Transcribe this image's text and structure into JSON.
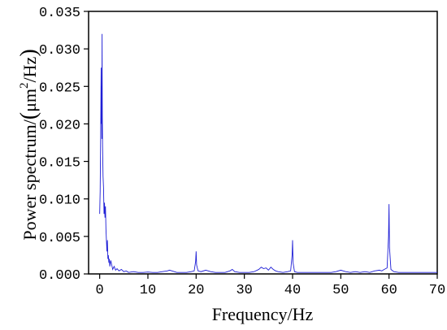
{
  "chart_data": {
    "type": "line",
    "title": "",
    "xlabel": "Frequency/Hz",
    "ylabel": {
      "prefix": "Power spectrum/",
      "open": "(",
      "unit_base": "μm",
      "unit_exp": "2",
      "unit_tail": "/Hz",
      "close": ")"
    },
    "xlim": [
      -2.3,
      70
    ],
    "ylim": [
      0,
      0.035
    ],
    "xticks": [
      0,
      10,
      20,
      30,
      40,
      50,
      60,
      70
    ],
    "yticks": [
      0.0,
      0.005,
      0.01,
      0.015,
      0.02,
      0.025,
      0.03,
      0.035
    ],
    "xtick_labels": [
      "0",
      "10",
      "20",
      "30",
      "40",
      "50",
      "60",
      "70"
    ],
    "ytick_labels": [
      "0.000",
      "0.005",
      "0.010",
      "0.015",
      "0.020",
      "0.025",
      "0.030",
      "0.035"
    ],
    "grid": false,
    "legend": "none",
    "series": [
      {
        "color": "#1f1fd6",
        "points": [
          [
            0.0,
            0.008
          ],
          [
            0.1,
            0.011
          ],
          [
            0.2,
            0.018
          ],
          [
            0.3,
            0.0275
          ],
          [
            0.35,
            0.02
          ],
          [
            0.4,
            0.025
          ],
          [
            0.45,
            0.018
          ],
          [
            0.5,
            0.032
          ],
          [
            0.55,
            0.021
          ],
          [
            0.6,
            0.017
          ],
          [
            0.7,
            0.013
          ],
          [
            0.8,
            0.0115
          ],
          [
            0.9,
            0.008
          ],
          [
            1.0,
            0.0095
          ],
          [
            1.1,
            0.0075
          ],
          [
            1.2,
            0.009
          ],
          [
            1.3,
            0.006
          ],
          [
            1.4,
            0.0045
          ],
          [
            1.5,
            0.003
          ],
          [
            1.6,
            0.0045
          ],
          [
            1.7,
            0.002
          ],
          [
            1.8,
            0.0025
          ],
          [
            1.9,
            0.0015
          ],
          [
            2.0,
            0.002
          ],
          [
            2.1,
            0.001
          ],
          [
            2.3,
            0.0018
          ],
          [
            2.5,
            0.0012
          ],
          [
            2.7,
            0.0006
          ],
          [
            3.0,
            0.001
          ],
          [
            3.3,
            0.0005
          ],
          [
            3.6,
            0.0007
          ],
          [
            4.0,
            0.0004
          ],
          [
            4.5,
            0.0006
          ],
          [
            5.0,
            0.0003
          ],
          [
            5.5,
            0.0004
          ],
          [
            6.0,
            0.0002
          ],
          [
            7.0,
            0.0003
          ],
          [
            8.0,
            0.0002
          ],
          [
            9.0,
            0.0002
          ],
          [
            10.0,
            0.00025
          ],
          [
            11.0,
            0.0002
          ],
          [
            12.0,
            0.0002
          ],
          [
            13.0,
            0.0003
          ],
          [
            14.0,
            0.0004
          ],
          [
            14.5,
            0.0005
          ],
          [
            15.0,
            0.0004
          ],
          [
            16.0,
            0.0002
          ],
          [
            17.0,
            0.0002
          ],
          [
            18.0,
            0.0002
          ],
          [
            19.0,
            0.0003
          ],
          [
            19.6,
            0.0004
          ],
          [
            19.9,
            0.0017
          ],
          [
            20.0,
            0.003
          ],
          [
            20.1,
            0.0012
          ],
          [
            20.4,
            0.0004
          ],
          [
            21.0,
            0.0003
          ],
          [
            22.0,
            0.0005
          ],
          [
            23.0,
            0.0003
          ],
          [
            24.0,
            0.0002
          ],
          [
            25.0,
            0.0002
          ],
          [
            26.0,
            0.0002
          ],
          [
            27.0,
            0.0004
          ],
          [
            27.5,
            0.0006
          ],
          [
            28.0,
            0.0003
          ],
          [
            29.0,
            0.0002
          ],
          [
            30.0,
            0.0002
          ],
          [
            31.0,
            0.0002
          ],
          [
            32.0,
            0.0003
          ],
          [
            33.0,
            0.0006
          ],
          [
            33.5,
            0.0009
          ],
          [
            34.0,
            0.0007
          ],
          [
            34.5,
            0.0008
          ],
          [
            35.0,
            0.0005
          ],
          [
            35.5,
            0.0009
          ],
          [
            36.0,
            0.0006
          ],
          [
            36.5,
            0.0004
          ],
          [
            37.0,
            0.0003
          ],
          [
            38.0,
            0.0002
          ],
          [
            39.0,
            0.0003
          ],
          [
            39.6,
            0.0004
          ],
          [
            39.9,
            0.0025
          ],
          [
            40.0,
            0.0045
          ],
          [
            40.1,
            0.0015
          ],
          [
            40.4,
            0.0003
          ],
          [
            41.0,
            0.0002
          ],
          [
            42.0,
            0.0002
          ],
          [
            43.0,
            0.0002
          ],
          [
            44.0,
            0.0002
          ],
          [
            45.0,
            0.0002
          ],
          [
            46.0,
            0.0002
          ],
          [
            47.0,
            0.0002
          ],
          [
            48.0,
            0.0002
          ],
          [
            49.0,
            0.0003
          ],
          [
            50.0,
            0.0005
          ],
          [
            50.5,
            0.0004
          ],
          [
            51.0,
            0.0003
          ],
          [
            52.0,
            0.0002
          ],
          [
            53.0,
            0.0003
          ],
          [
            54.0,
            0.0002
          ],
          [
            55.0,
            0.0003
          ],
          [
            56.0,
            0.0002
          ],
          [
            57.0,
            0.0004
          ],
          [
            58.0,
            0.0005
          ],
          [
            58.5,
            0.0004
          ],
          [
            59.0,
            0.0006
          ],
          [
            59.6,
            0.0008
          ],
          [
            59.9,
            0.005
          ],
          [
            60.0,
            0.0093
          ],
          [
            60.1,
            0.0035
          ],
          [
            60.4,
            0.0006
          ],
          [
            61.0,
            0.0003
          ],
          [
            62.0,
            0.0002
          ],
          [
            63.0,
            0.0002
          ],
          [
            64.0,
            0.0002
          ],
          [
            65.0,
            0.0002
          ],
          [
            66.0,
            0.0002
          ],
          [
            67.0,
            0.0002
          ],
          [
            68.0,
            0.0002
          ],
          [
            69.0,
            0.0002
          ],
          [
            70.0,
            0.0002
          ]
        ]
      }
    ]
  }
}
